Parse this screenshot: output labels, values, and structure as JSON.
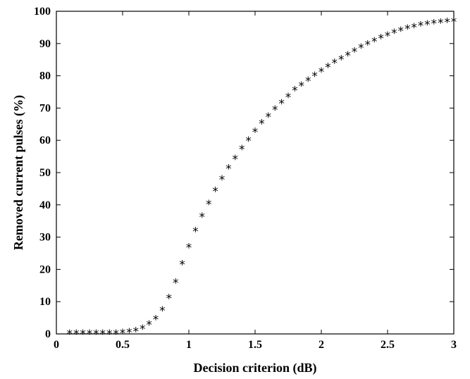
{
  "chart_data": {
    "type": "scatter",
    "title": "",
    "xlabel": "Decision criterion (dB)",
    "ylabel": "Removed current pulses (%)",
    "xlim": [
      0,
      3
    ],
    "ylim": [
      0,
      100
    ],
    "xticks": [
      0,
      0.5,
      1,
      1.5,
      2,
      2.5,
      3
    ],
    "xtick_labels": [
      "0",
      "0.5",
      "1",
      "1.5",
      "2",
      "2.5",
      "3"
    ],
    "yticks": [
      0,
      10,
      20,
      30,
      40,
      50,
      60,
      70,
      80,
      90,
      100
    ],
    "ytick_labels": [
      "0",
      "10",
      "20",
      "30",
      "40",
      "50",
      "60",
      "70",
      "80",
      "90",
      "100"
    ],
    "grid": false,
    "marker": "asterisk",
    "marker_symbol": "*",
    "color": "#000000",
    "series": [
      {
        "x": [
          0.1,
          0.15,
          0.2,
          0.25,
          0.3,
          0.35,
          0.4,
          0.45,
          0.5,
          0.55,
          0.6,
          0.65,
          0.7,
          0.75,
          0.8,
          0.85,
          0.9,
          0.95,
          1.0,
          1.05,
          1.1,
          1.15,
          1.2,
          1.25,
          1.3,
          1.35,
          1.4,
          1.45,
          1.5,
          1.55,
          1.6,
          1.65,
          1.7,
          1.75,
          1.8,
          1.85,
          1.9,
          1.95,
          2.0,
          2.05,
          2.1,
          2.15,
          2.2,
          2.25,
          2.3,
          2.35,
          2.4,
          2.45,
          2.5,
          2.55,
          2.6,
          2.65,
          2.7,
          2.75,
          2.8,
          2.85,
          2.9,
          2.95,
          3.0
        ],
        "y": [
          0,
          0,
          0,
          0,
          0,
          0,
          0,
          0,
          0.2,
          0.4,
          0.8,
          1.5,
          2.8,
          4.5,
          7.2,
          11,
          15.8,
          21.5,
          26.8,
          31.8,
          36.2,
          40.2,
          44.2,
          47.8,
          51.2,
          54.2,
          57.2,
          59.8,
          62.6,
          65.2,
          67.2,
          69.4,
          71.4,
          73.4,
          75.4,
          76.9,
          78.4,
          79.9,
          81.2,
          82.6,
          83.9,
          85.0,
          86.2,
          87.5,
          88.6,
          89.6,
          90.6,
          91.6,
          92.4,
          93.2,
          93.9,
          94.5,
          95.0,
          95.5,
          95.9,
          96.2,
          96.4,
          96.6,
          96.7
        ]
      }
    ]
  }
}
